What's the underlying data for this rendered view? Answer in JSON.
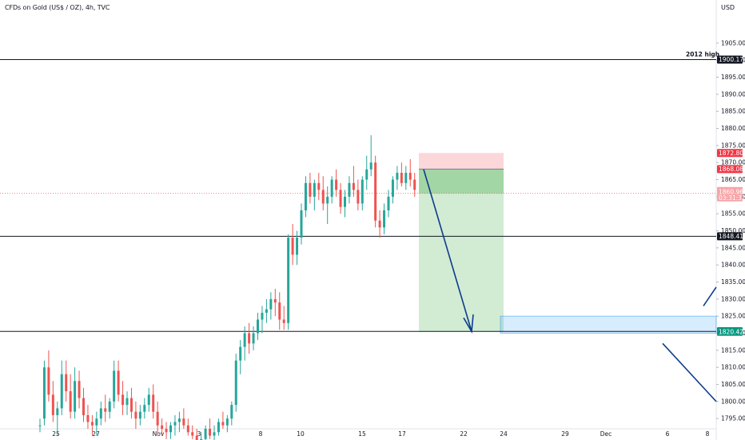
{
  "title": "CFDs on Gold (US$ / OZ), 4h, TVC",
  "currency": "USD",
  "colors": {
    "up": "#26a69a",
    "down": "#ef5350",
    "draw": "#0d3b8c",
    "zone": "#2196f3"
  },
  "chart_data": {
    "type": "candlestick",
    "ylim": [
      1792,
      1912
    ],
    "y_ticks": [
      1795,
      1800,
      1805,
      1810,
      1815,
      1820,
      1825,
      1830,
      1835,
      1840,
      1845,
      1850,
      1855,
      1860,
      1865,
      1870,
      1875,
      1880,
      1885,
      1890,
      1895,
      1900,
      1905
    ],
    "x_labels": [
      "25",
      "27",
      "Nov",
      "3",
      "8",
      "10",
      "15",
      "17",
      "22",
      "24",
      "29",
      "Dec",
      "6",
      "8"
    ],
    "horizontal_levels": [
      {
        "price": 1900.17,
        "label": "1900.17",
        "annotation": "2012 high"
      },
      {
        "price": 1848.41,
        "label": "1848.41"
      },
      {
        "price": 1820.54,
        "label": "1820.54"
      }
    ],
    "current_price": {
      "price": 1860.96,
      "label": "1860.96",
      "countdown": "03:31:32"
    },
    "trade": {
      "stop": 1872.8,
      "stop_label": "1872.80",
      "entry": 1868.08,
      "entry_label": "1868.08",
      "target": 1820.42,
      "target_label": "1820.42"
    },
    "candles": [
      [
        1793,
        1795,
        1791,
        1793
      ],
      [
        1795,
        1812,
        1793,
        1810
      ],
      [
        1810,
        1815,
        1800,
        1802
      ],
      [
        1802,
        1806,
        1794,
        1796
      ],
      [
        1796,
        1800,
        1790,
        1798
      ],
      [
        1798,
        1812,
        1796,
        1808
      ],
      [
        1808,
        1812,
        1800,
        1803
      ],
      [
        1803,
        1808,
        1795,
        1797
      ],
      [
        1797,
        1810,
        1795,
        1806
      ],
      [
        1806,
        1809,
        1798,
        1801
      ],
      [
        1801,
        1804,
        1794,
        1796
      ],
      [
        1796,
        1799,
        1792,
        1794
      ],
      [
        1794,
        1796,
        1790,
        1793
      ],
      [
        1793,
        1797,
        1790,
        1795
      ],
      [
        1795,
        1800,
        1793,
        1798
      ],
      [
        1798,
        1802,
        1794,
        1797
      ],
      [
        1797,
        1801,
        1795,
        1800
      ],
      [
        1800,
        1812,
        1798,
        1809
      ],
      [
        1809,
        1812,
        1800,
        1802
      ],
      [
        1802,
        1806,
        1796,
        1799
      ],
      [
        1799,
        1803,
        1796,
        1801
      ],
      [
        1801,
        1804,
        1795,
        1797
      ],
      [
        1797,
        1800,
        1792,
        1795
      ],
      [
        1795,
        1799,
        1793,
        1797
      ],
      [
        1797,
        1801,
        1795,
        1799
      ],
      [
        1799,
        1804,
        1797,
        1802
      ],
      [
        1802,
        1805,
        1795,
        1797
      ],
      [
        1797,
        1800,
        1790,
        1793
      ],
      [
        1793,
        1795,
        1790,
        1792
      ],
      [
        1792,
        1794,
        1789,
        1791
      ],
      [
        1791,
        1794,
        1789,
        1793
      ],
      [
        1793,
        1796,
        1790,
        1794
      ],
      [
        1794,
        1797,
        1791,
        1795
      ],
      [
        1795,
        1798,
        1792,
        1793
      ],
      [
        1793,
        1795,
        1790,
        1791
      ],
      [
        1791,
        1793,
        1789,
        1790
      ],
      [
        1790,
        1792,
        1787,
        1788
      ],
      [
        1788,
        1791,
        1786,
        1789
      ],
      [
        1789,
        1793,
        1787,
        1792
      ],
      [
        1792,
        1795,
        1789,
        1790
      ],
      [
        1790,
        1793,
        1788,
        1791
      ],
      [
        1791,
        1795,
        1790,
        1794
      ],
      [
        1794,
        1797,
        1792,
        1793
      ],
      [
        1793,
        1796,
        1791,
        1795
      ],
      [
        1795,
        1800,
        1793,
        1799
      ],
      [
        1799,
        1814,
        1797,
        1812
      ],
      [
        1812,
        1818,
        1808,
        1816
      ],
      [
        1816,
        1822,
        1812,
        1820
      ],
      [
        1820,
        1823,
        1814,
        1817
      ],
      [
        1817,
        1822,
        1815,
        1820
      ],
      [
        1820,
        1826,
        1818,
        1824
      ],
      [
        1824,
        1828,
        1820,
        1826
      ],
      [
        1826,
        1830,
        1823,
        1827
      ],
      [
        1827,
        1832,
        1824,
        1830
      ],
      [
        1830,
        1833,
        1825,
        1829
      ],
      [
        1829,
        1832,
        1821,
        1824
      ],
      [
        1824,
        1828,
        1821,
        1823
      ],
      [
        1823,
        1849,
        1821,
        1848
      ],
      [
        1848,
        1852,
        1840,
        1843
      ],
      [
        1843,
        1850,
        1840,
        1848
      ],
      [
        1848,
        1858,
        1846,
        1856
      ],
      [
        1856,
        1866,
        1854,
        1864
      ],
      [
        1864,
        1867,
        1858,
        1860
      ],
      [
        1860,
        1865,
        1856,
        1864
      ],
      [
        1864,
        1867,
        1859,
        1862
      ],
      [
        1862,
        1866,
        1856,
        1858
      ],
      [
        1858,
        1863,
        1852,
        1860
      ],
      [
        1860,
        1866,
        1858,
        1865
      ],
      [
        1865,
        1868,
        1860,
        1862
      ],
      [
        1862,
        1864,
        1855,
        1857
      ],
      [
        1857,
        1862,
        1854,
        1860
      ],
      [
        1860,
        1866,
        1858,
        1864
      ],
      [
        1864,
        1869,
        1860,
        1862
      ],
      [
        1862,
        1865,
        1856,
        1858
      ],
      [
        1858,
        1866,
        1856,
        1865
      ],
      [
        1865,
        1872,
        1862,
        1868
      ],
      [
        1868,
        1878,
        1866,
        1870
      ],
      [
        1870,
        1872,
        1851,
        1853
      ],
      [
        1853,
        1856,
        1848,
        1851
      ],
      [
        1851,
        1858,
        1849,
        1856
      ],
      [
        1856,
        1862,
        1854,
        1860
      ],
      [
        1860,
        1866,
        1858,
        1865
      ],
      [
        1865,
        1869,
        1862,
        1867
      ],
      [
        1867,
        1870,
        1863,
        1864
      ],
      [
        1864,
        1869,
        1862,
        1867
      ],
      [
        1867,
        1871,
        1863,
        1865
      ],
      [
        1865,
        1867,
        1860,
        1862
      ]
    ]
  }
}
